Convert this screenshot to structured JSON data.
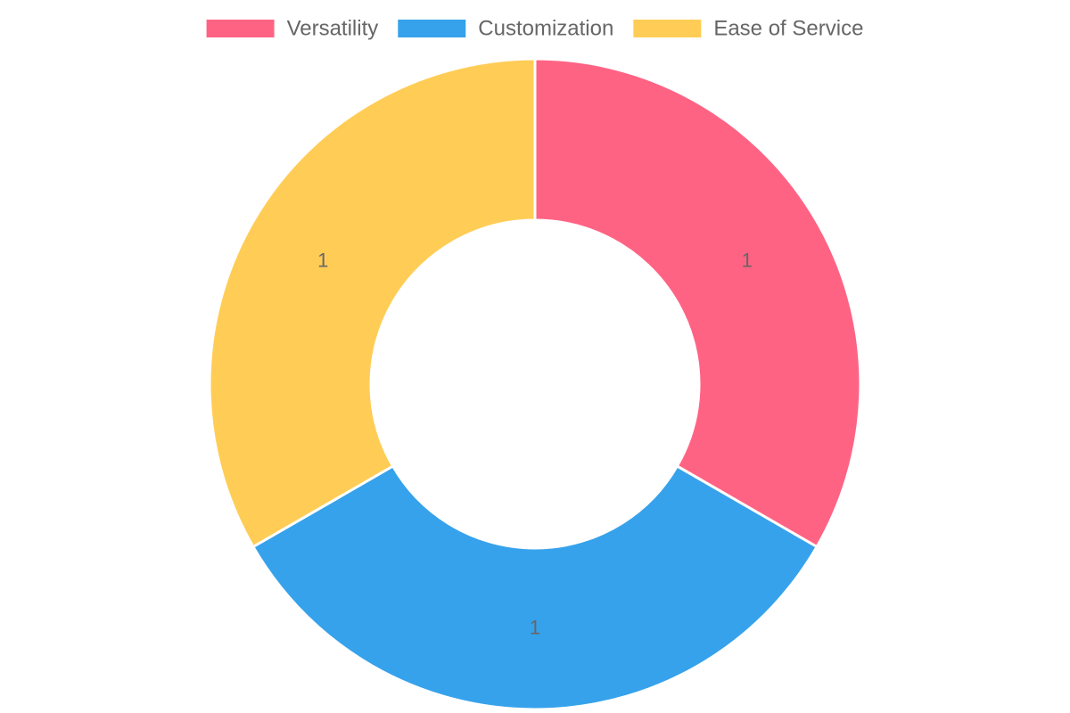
{
  "chart_data": {
    "type": "doughnut",
    "categories": [
      "Versatility",
      "Customization",
      "Ease of Service"
    ],
    "values": [
      1,
      1,
      1
    ],
    "colors": [
      "#ff6384",
      "#36a2eb",
      "#ffcd56"
    ],
    "legend": "top"
  }
}
